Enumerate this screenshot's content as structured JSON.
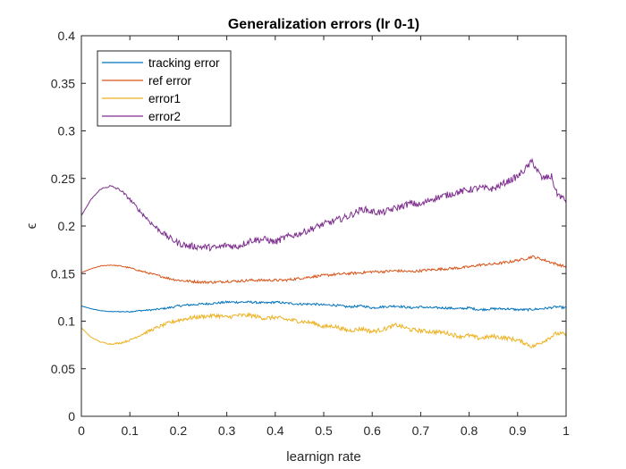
{
  "chart_data": {
    "type": "line",
    "title": "Generalization errors (lr 0-1)",
    "xlabel": "learnign rate",
    "ylabel": "ϵ",
    "xlim": [
      0,
      1
    ],
    "ylim": [
      0,
      0.4
    ],
    "xticks": [
      "0",
      "0.1",
      "0.2",
      "0.3",
      "0.4",
      "0.5",
      "0.6",
      "0.7",
      "0.8",
      "0.9",
      "1"
    ],
    "yticks": [
      "0",
      "0.05",
      "0.1",
      "0.15",
      "0.2",
      "0.25",
      "0.3",
      "0.35",
      "0.4"
    ],
    "grid": false,
    "legend_position": "top-left",
    "series": [
      {
        "name": "tracking error",
        "color": "#0072BD",
        "x": [
          0,
          0.02,
          0.04,
          0.06,
          0.08,
          0.1,
          0.12,
          0.15,
          0.18,
          0.2,
          0.22,
          0.25,
          0.28,
          0.3,
          0.32,
          0.35,
          0.38,
          0.4,
          0.42,
          0.45,
          0.48,
          0.5,
          0.52,
          0.55,
          0.58,
          0.6,
          0.62,
          0.65,
          0.68,
          0.7,
          0.72,
          0.75,
          0.78,
          0.8,
          0.82,
          0.85,
          0.88,
          0.9,
          0.92,
          0.95,
          0.98,
          1
        ],
        "y": [
          0.116,
          0.113,
          0.111,
          0.11,
          0.11,
          0.11,
          0.111,
          0.112,
          0.114,
          0.116,
          0.117,
          0.118,
          0.119,
          0.12,
          0.12,
          0.12,
          0.119,
          0.12,
          0.119,
          0.118,
          0.118,
          0.117,
          0.117,
          0.115,
          0.116,
          0.114,
          0.115,
          0.116,
          0.114,
          0.115,
          0.114,
          0.114,
          0.113,
          0.114,
          0.112,
          0.113,
          0.113,
          0.112,
          0.112,
          0.113,
          0.115,
          0.114
        ]
      },
      {
        "name": "ref error",
        "color": "#D95319",
        "x": [
          0,
          0.02,
          0.04,
          0.06,
          0.08,
          0.1,
          0.12,
          0.15,
          0.18,
          0.2,
          0.22,
          0.25,
          0.28,
          0.3,
          0.32,
          0.35,
          0.38,
          0.4,
          0.42,
          0.45,
          0.48,
          0.5,
          0.52,
          0.55,
          0.58,
          0.6,
          0.62,
          0.65,
          0.68,
          0.7,
          0.72,
          0.75,
          0.78,
          0.8,
          0.82,
          0.85,
          0.88,
          0.9,
          0.92,
          0.93,
          0.95,
          0.98,
          1
        ],
        "y": [
          0.151,
          0.155,
          0.158,
          0.159,
          0.158,
          0.156,
          0.153,
          0.149,
          0.145,
          0.143,
          0.142,
          0.141,
          0.141,
          0.142,
          0.142,
          0.143,
          0.143,
          0.143,
          0.143,
          0.145,
          0.147,
          0.148,
          0.149,
          0.15,
          0.151,
          0.152,
          0.152,
          0.153,
          0.152,
          0.153,
          0.154,
          0.155,
          0.156,
          0.157,
          0.159,
          0.16,
          0.162,
          0.164,
          0.166,
          0.168,
          0.165,
          0.16,
          0.157
        ]
      },
      {
        "name": "error1",
        "color": "#EDB120",
        "x": [
          0,
          0.02,
          0.04,
          0.06,
          0.08,
          0.1,
          0.12,
          0.15,
          0.18,
          0.2,
          0.22,
          0.25,
          0.28,
          0.3,
          0.32,
          0.35,
          0.38,
          0.4,
          0.42,
          0.45,
          0.48,
          0.5,
          0.52,
          0.55,
          0.58,
          0.6,
          0.62,
          0.65,
          0.68,
          0.7,
          0.72,
          0.75,
          0.78,
          0.8,
          0.82,
          0.85,
          0.88,
          0.9,
          0.92,
          0.93,
          0.95,
          0.98,
          1
        ],
        "y": [
          0.093,
          0.083,
          0.078,
          0.076,
          0.077,
          0.08,
          0.085,
          0.092,
          0.098,
          0.101,
          0.103,
          0.105,
          0.106,
          0.104,
          0.106,
          0.106,
          0.103,
          0.104,
          0.102,
          0.1,
          0.098,
          0.094,
          0.095,
          0.09,
          0.092,
          0.089,
          0.091,
          0.096,
          0.091,
          0.09,
          0.089,
          0.088,
          0.084,
          0.085,
          0.082,
          0.084,
          0.082,
          0.08,
          0.076,
          0.073,
          0.078,
          0.087,
          0.086
        ]
      },
      {
        "name": "error2",
        "color": "#7E2F8E",
        "x": [
          0,
          0.02,
          0.04,
          0.06,
          0.08,
          0.1,
          0.12,
          0.15,
          0.18,
          0.2,
          0.22,
          0.25,
          0.28,
          0.3,
          0.32,
          0.35,
          0.38,
          0.4,
          0.42,
          0.45,
          0.48,
          0.5,
          0.52,
          0.55,
          0.58,
          0.6,
          0.62,
          0.65,
          0.68,
          0.7,
          0.72,
          0.75,
          0.78,
          0.8,
          0.82,
          0.85,
          0.88,
          0.9,
          0.92,
          0.93,
          0.95,
          0.97,
          0.98,
          1
        ],
        "y": [
          0.211,
          0.228,
          0.239,
          0.242,
          0.238,
          0.228,
          0.216,
          0.2,
          0.188,
          0.182,
          0.179,
          0.178,
          0.177,
          0.18,
          0.178,
          0.185,
          0.186,
          0.183,
          0.188,
          0.192,
          0.198,
          0.202,
          0.205,
          0.21,
          0.218,
          0.215,
          0.214,
          0.219,
          0.224,
          0.222,
          0.228,
          0.232,
          0.236,
          0.238,
          0.24,
          0.239,
          0.247,
          0.252,
          0.262,
          0.268,
          0.25,
          0.252,
          0.235,
          0.226
        ]
      }
    ]
  }
}
